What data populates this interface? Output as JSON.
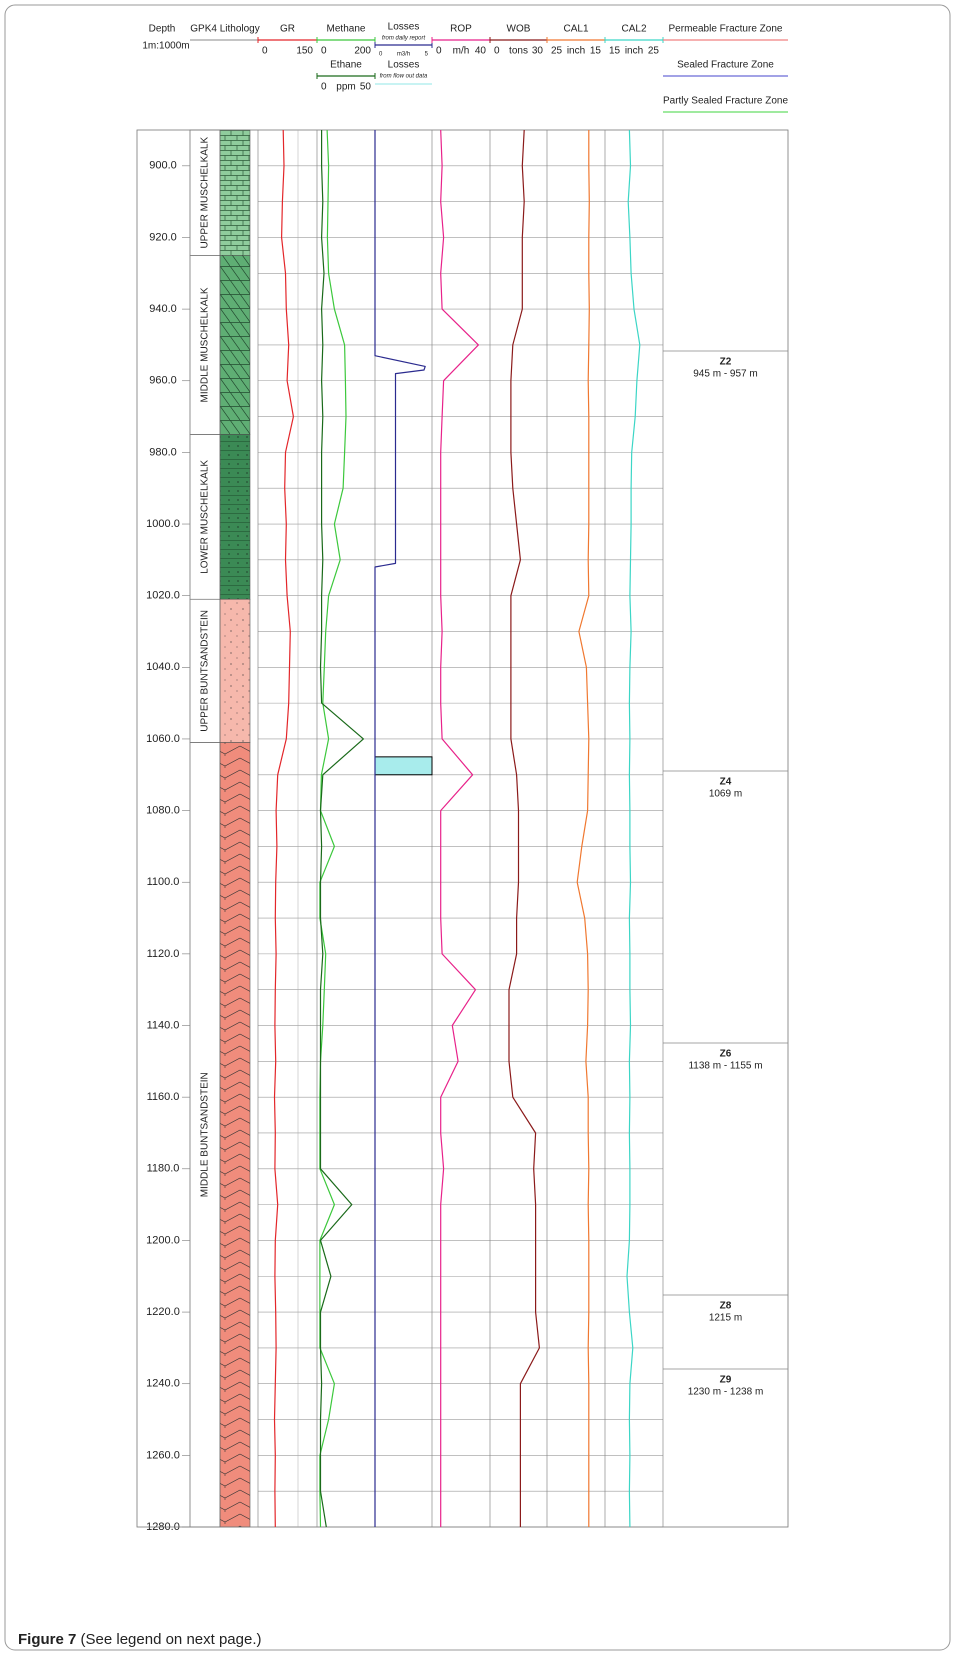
{
  "chart_data": {
    "type": "well-log",
    "depth_label": "Depth",
    "scale": "1m:1000m",
    "ylim": [
      890,
      1280
    ],
    "yticks": [
      {
        "value": 900,
        "label": "900.0"
      },
      {
        "value": 920,
        "label": "920.0"
      },
      {
        "value": 940,
        "label": "940.0"
      },
      {
        "value": 960,
        "label": "960.0"
      },
      {
        "value": 980,
        "label": "980.0"
      },
      {
        "value": 1000,
        "label": "1000.0"
      },
      {
        "value": 1020,
        "label": "1020.0"
      },
      {
        "value": 1040,
        "label": "1040.0"
      },
      {
        "value": 1060,
        "label": "1060.0"
      },
      {
        "value": 1080,
        "label": "1080.0"
      },
      {
        "value": 1100,
        "label": "1100.0"
      },
      {
        "value": 1120,
        "label": "1120.0"
      },
      {
        "value": 1140,
        "label": "1140.0"
      },
      {
        "value": 1160,
        "label": "1160.0"
      },
      {
        "value": 1180,
        "label": "1180.0"
      },
      {
        "value": 1200,
        "label": "1200.0"
      },
      {
        "value": 1220,
        "label": "1220.0"
      },
      {
        "value": 1240,
        "label": "1240.0"
      },
      {
        "value": 1260,
        "label": "1260.0"
      },
      {
        "value": 1280,
        "label": "1280.0"
      }
    ],
    "minor_yticks": [
      910,
      930,
      950,
      970,
      990,
      1010,
      1030,
      1050,
      1070,
      1090,
      1110,
      1130,
      1150,
      1170,
      1190,
      1210,
      1230,
      1250,
      1270
    ],
    "lithology": {
      "title": "GPK4 Lithology",
      "formations": [
        {
          "name": "UPPER MUSCHELKALK",
          "top": 890,
          "bottom": 925,
          "color": "#8fcc9c"
        },
        {
          "name": "MIDDLE MUSCHELKALK",
          "top": 925,
          "bottom": 975,
          "color": "#5fae74"
        },
        {
          "name": "LOWER MUSCHELKALK",
          "top": 975,
          "bottom": 1021,
          "color": "#3b8a55"
        },
        {
          "name": "UPPER BUNTSANDSTEIN",
          "top": 1021,
          "bottom": 1061,
          "color": "#f6b8ac"
        },
        {
          "name": "MIDDLE BUNTSANDSTEIN",
          "top": 1061,
          "bottom": 1280,
          "color": "#f08c7c"
        }
      ]
    },
    "depths": [
      890,
      900,
      910,
      920,
      930,
      940,
      950,
      960,
      970,
      980,
      990,
      1000,
      1010,
      1020,
      1030,
      1040,
      1050,
      1060,
      1070,
      1080,
      1090,
      1100,
      1110,
      1120,
      1130,
      1140,
      1150,
      1160,
      1170,
      1180,
      1190,
      1200,
      1210,
      1220,
      1230,
      1240,
      1250,
      1260,
      1270,
      1280
    ],
    "tracks": [
      {
        "curves": [
          {
            "name": "GR",
            "color": "#e3262a",
            "xlim": [
              0,
              150
            ],
            "xticks": [
              0,
              150
            ],
            "values": [
              64,
              66,
              62,
              60,
              70,
              72,
              78,
              74,
              90,
              70,
              68,
              72,
              70,
              74,
              82,
              80,
              78,
              72,
              50,
              46,
              48,
              45,
              44,
              46,
              44,
              43,
              45,
              42,
              44,
              43,
              50,
              44,
              43,
              45,
              46,
              44,
              42,
              44,
              43,
              44
            ]
          }
        ]
      },
      {
        "curves": [
          {
            "name": "Methane",
            "color": "#3cc83c",
            "xlim": [
              0,
              200
            ],
            "xticks": [
              0,
              200
            ],
            "values": [
              35,
              40,
              38,
              36,
              40,
              60,
              95,
              98,
              100,
              95,
              90,
              60,
              80,
              40,
              30,
              25,
              20,
              40,
              15,
              12,
              60,
              10,
              10,
              30,
              25,
              20,
              12,
              10,
              10,
              10,
              60,
              10,
              10,
              10,
              10,
              60,
              40,
              10,
              10,
              12
            ]
          },
          {
            "name": "Ethane",
            "color": "#1a6a1a",
            "unit": "ppm",
            "xlim": [
              0,
              50
            ],
            "xticks": [
              0,
              50
            ],
            "values": [
              4,
              4,
              5,
              4,
              6,
              4,
              5,
              4,
              5,
              4,
              4,
              4,
              5,
              4,
              4,
              3,
              4,
              40,
              5,
              3,
              4,
              3,
              3,
              5,
              3,
              3,
              3,
              3,
              3,
              3,
              30,
              3,
              12,
              3,
              3,
              4,
              3,
              3,
              3,
              8
            ]
          }
        ]
      },
      {
        "curves": [
          {
            "name": "Losses",
            "subtitle": "from daily report",
            "color": "#2b2b8f",
            "unit": "m3/h",
            "xlim": [
              0,
              5
            ],
            "xticks": [
              0,
              5
            ],
            "depths": [
              890,
              953,
              956,
              957,
              958,
              1011,
              1012,
              1280
            ],
            "values": [
              0,
              0,
              4.4,
              4.3,
              1.8,
              1.8,
              0,
              0
            ]
          }
        ],
        "interval": {
          "name": "Losses",
          "subtitle": "from flow out data",
          "color": "#a8ecec",
          "top": 1065,
          "bottom": 1070
        }
      },
      {
        "curves": [
          {
            "name": "ROP",
            "color": "#e8228a",
            "unit": "m/h",
            "xlim": [
              0,
              40
            ],
            "xticks": [
              0,
              40
            ],
            "values": [
              6,
              7,
              6,
              8,
              6,
              7,
              32,
              8,
              7,
              6,
              6,
              6,
              6,
              6,
              7,
              6,
              6,
              7,
              28,
              6,
              6,
              6,
              6,
              7,
              30,
              14,
              18,
              6,
              6,
              8,
              6,
              6,
              6,
              6,
              6,
              6,
              6,
              6,
              6,
              6
            ]
          }
        ]
      },
      {
        "curves": [
          {
            "name": "WOB",
            "color": "#8b1a1a",
            "unit": "tons",
            "xlim": [
              0,
              30
            ],
            "xticks": [
              0,
              30
            ],
            "values": [
              18,
              17,
              18,
              17,
              17,
              17,
              12,
              11,
              11,
              11,
              12,
              14,
              16,
              11,
              11,
              11,
              11,
              11,
              14,
              15,
              15,
              15,
              14,
              14,
              10,
              10,
              10,
              12,
              24,
              23,
              24,
              24,
              24,
              24,
              26,
              16,
              16,
              16,
              16,
              16
            ]
          }
        ]
      },
      {
        "curves": [
          {
            "name": "CAL1",
            "color": "#f07830",
            "unit": "inch",
            "xlim": [
              25,
              15
            ],
            "xticks": [
              25,
              15
            ],
            "values": [
              17.8,
              17.8,
              17.7,
              17.8,
              17.8,
              17.7,
              17.8,
              17.9,
              17.8,
              17.8,
              17.8,
              17.8,
              17.9,
              17.8,
              19.5,
              18.2,
              18.0,
              17.8,
              17.9,
              18.0,
              19.0,
              19.8,
              18.5,
              18.0,
              17.9,
              18.0,
              18.3,
              17.9,
              17.9,
              17.8,
              17.9,
              17.8,
              17.8,
              17.8,
              17.9,
              17.8,
              17.8,
              17.8,
              17.8,
              17.8
            ]
          }
        ]
      },
      {
        "curves": [
          {
            "name": "CAL2",
            "color": "#3cd6c6",
            "unit": "inch",
            "xlim": [
              15,
              25
            ],
            "xticks": [
              15,
              25
            ],
            "values": [
              19.2,
              19.4,
              19.0,
              19.3,
              19.5,
              20.0,
              21.0,
              20.5,
              20.2,
              19.6,
              19.5,
              19.5,
              19.4,
              19.3,
              19.5,
              19.3,
              19.2,
              19.3,
              19.2,
              19.3,
              19.3,
              19.4,
              19.2,
              19.3,
              19.3,
              19.4,
              19.2,
              19.3,
              19.2,
              19.3,
              19.3,
              19.2,
              18.8,
              19.2,
              19.8,
              19.3,
              19.2,
              19.3,
              19.2,
              19.3
            ]
          }
        ]
      }
    ],
    "fracture_legend": [
      {
        "name": "Permeable Fracture Zone",
        "color": "#f08080"
      },
      {
        "name": "Sealed Fracture Zone",
        "color": "#6a6ad8"
      },
      {
        "name": "Partly Sealed Fracture Zone",
        "color": "#66dd66"
      }
    ],
    "zones": [
      {
        "label": "Z2",
        "range": "945 m - 957 m",
        "color": "#e3262a"
      },
      {
        "label": "Z4",
        "range": "1069 m",
        "color": "#33dd22"
      },
      {
        "label": "Z6",
        "range": "1138 m - 1155 m",
        "color": "#2222dd"
      },
      {
        "label": "Z8",
        "range": "1215 m",
        "color": "#2222dd"
      },
      {
        "label": "Z9",
        "range": "1230 m - 1238 m",
        "color": "#33dd22"
      }
    ],
    "caption": {
      "label": "Figure 7",
      "text": " (See legend on next page.)"
    }
  }
}
